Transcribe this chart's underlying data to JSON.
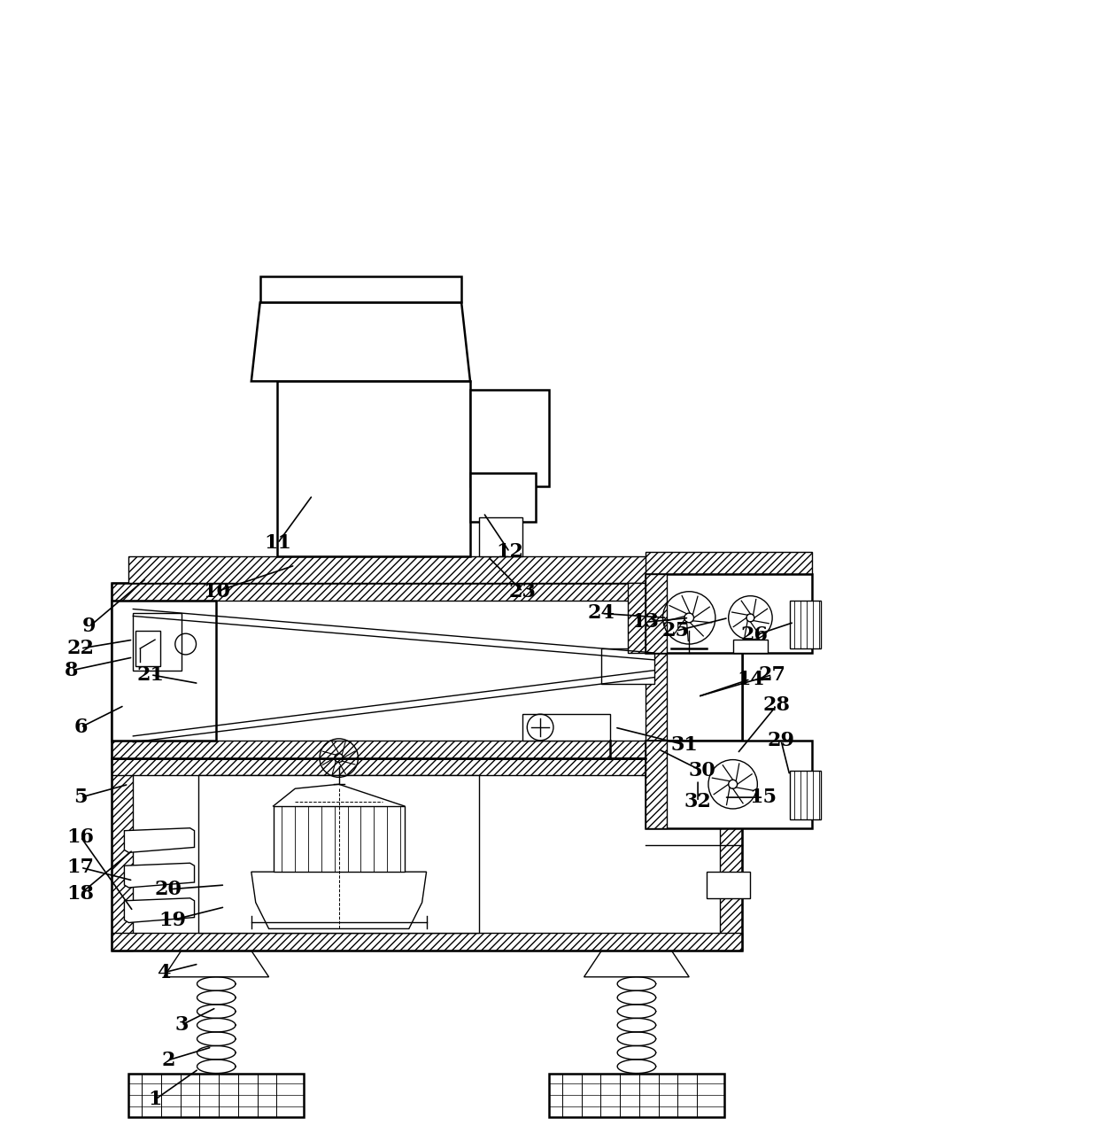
{
  "bg_color": "#ffffff",
  "line_color": "#000000",
  "figsize": [
    12.4,
    12.88
  ],
  "dpi": 100,
  "lw_main": 1.8,
  "lw_thin": 1.0,
  "label_fontsize": 16
}
